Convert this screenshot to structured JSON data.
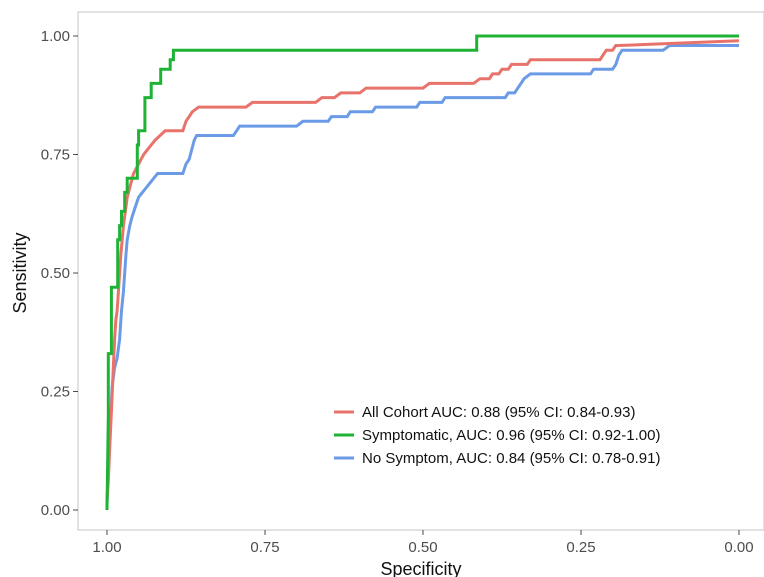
{
  "chart_data": {
    "type": "line",
    "title": "",
    "xlabel": "Specificity",
    "ylabel": "Sensitivity",
    "x_reversed": true,
    "xlim": [
      1.0,
      0.0
    ],
    "ylim": [
      0.0,
      1.0
    ],
    "x_ticks": [
      "1.00",
      "0.75",
      "0.50",
      "0.25",
      "0.00"
    ],
    "y_ticks": [
      "0.00",
      "0.25",
      "0.50",
      "0.75",
      "1.00"
    ],
    "grid": false,
    "legend_position": "bottom-right",
    "series": [
      {
        "name": "All Cohort AUC: 0.88 (95% CI: 0.84-0.93)",
        "color": "#e8736b",
        "points": [
          [
            1.0,
            0.0
          ],
          [
            1.0,
            0.02
          ],
          [
            0.998,
            0.06
          ],
          [
            0.996,
            0.12
          ],
          [
            0.994,
            0.18
          ],
          [
            0.992,
            0.24
          ],
          [
            0.99,
            0.3
          ],
          [
            0.988,
            0.36
          ],
          [
            0.986,
            0.4
          ],
          [
            0.984,
            0.42
          ],
          [
            0.982,
            0.46
          ],
          [
            0.98,
            0.5
          ],
          [
            0.978,
            0.54
          ],
          [
            0.976,
            0.57
          ],
          [
            0.974,
            0.6
          ],
          [
            0.972,
            0.62
          ],
          [
            0.97,
            0.64
          ],
          [
            0.968,
            0.66
          ],
          [
            0.966,
            0.67
          ],
          [
            0.962,
            0.69
          ],
          [
            0.958,
            0.71
          ],
          [
            0.954,
            0.72
          ],
          [
            0.95,
            0.73
          ],
          [
            0.946,
            0.74
          ],
          [
            0.942,
            0.75
          ],
          [
            0.936,
            0.76
          ],
          [
            0.93,
            0.77
          ],
          [
            0.924,
            0.78
          ],
          [
            0.916,
            0.79
          ],
          [
            0.908,
            0.8
          ],
          [
            0.88,
            0.8
          ],
          [
            0.875,
            0.82
          ],
          [
            0.87,
            0.83
          ],
          [
            0.865,
            0.84
          ],
          [
            0.855,
            0.85
          ],
          [
            0.78,
            0.85
          ],
          [
            0.77,
            0.86
          ],
          [
            0.67,
            0.86
          ],
          [
            0.66,
            0.87
          ],
          [
            0.64,
            0.87
          ],
          [
            0.63,
            0.88
          ],
          [
            0.6,
            0.88
          ],
          [
            0.59,
            0.89
          ],
          [
            0.5,
            0.89
          ],
          [
            0.49,
            0.9
          ],
          [
            0.42,
            0.9
          ],
          [
            0.41,
            0.91
          ],
          [
            0.395,
            0.91
          ],
          [
            0.39,
            0.92
          ],
          [
            0.38,
            0.92
          ],
          [
            0.375,
            0.93
          ],
          [
            0.365,
            0.93
          ],
          [
            0.36,
            0.94
          ],
          [
            0.335,
            0.94
          ],
          [
            0.33,
            0.95
          ],
          [
            0.22,
            0.95
          ],
          [
            0.215,
            0.96
          ],
          [
            0.21,
            0.97
          ],
          [
            0.2,
            0.97
          ],
          [
            0.195,
            0.98
          ],
          [
            0.19,
            0.98
          ],
          [
            0.0,
            0.99
          ]
        ]
      },
      {
        "name": "Symptomatic, AUC: 0.96 (95% CI: 0.92-1.00)",
        "color": "#1fb336",
        "points": [
          [
            1.0,
            0.0
          ],
          [
            0.998,
            0.2
          ],
          [
            0.998,
            0.33
          ],
          [
            0.993,
            0.33
          ],
          [
            0.993,
            0.47
          ],
          [
            0.983,
            0.47
          ],
          [
            0.983,
            0.57
          ],
          [
            0.98,
            0.57
          ],
          [
            0.98,
            0.6
          ],
          [
            0.977,
            0.6
          ],
          [
            0.977,
            0.63
          ],
          [
            0.972,
            0.63
          ],
          [
            0.972,
            0.67
          ],
          [
            0.968,
            0.67
          ],
          [
            0.968,
            0.7
          ],
          [
            0.952,
            0.7
          ],
          [
            0.952,
            0.77
          ],
          [
            0.95,
            0.77
          ],
          [
            0.95,
            0.8
          ],
          [
            0.94,
            0.8
          ],
          [
            0.94,
            0.87
          ],
          [
            0.93,
            0.87
          ],
          [
            0.93,
            0.9
          ],
          [
            0.915,
            0.9
          ],
          [
            0.915,
            0.93
          ],
          [
            0.9,
            0.93
          ],
          [
            0.9,
            0.95
          ],
          [
            0.895,
            0.95
          ],
          [
            0.895,
            0.97
          ],
          [
            0.415,
            0.97
          ],
          [
            0.415,
            1.0
          ],
          [
            0.0,
            1.0
          ]
        ]
      },
      {
        "name": "No Symptom, AUC: 0.84 (95% CI: 0.78-0.91)",
        "color": "#6b9be6",
        "points": [
          [
            1.0,
            0.0
          ],
          [
            1.0,
            0.02
          ],
          [
            0.998,
            0.08
          ],
          [
            0.996,
            0.14
          ],
          [
            0.994,
            0.2
          ],
          [
            0.992,
            0.26
          ],
          [
            0.988,
            0.3
          ],
          [
            0.984,
            0.32
          ],
          [
            0.98,
            0.36
          ],
          [
            0.977,
            0.42
          ],
          [
            0.974,
            0.46
          ],
          [
            0.972,
            0.5
          ],
          [
            0.97,
            0.54
          ],
          [
            0.968,
            0.57
          ],
          [
            0.964,
            0.6
          ],
          [
            0.96,
            0.62
          ],
          [
            0.955,
            0.64
          ],
          [
            0.95,
            0.66
          ],
          [
            0.944,
            0.67
          ],
          [
            0.938,
            0.68
          ],
          [
            0.932,
            0.69
          ],
          [
            0.926,
            0.7
          ],
          [
            0.92,
            0.71
          ],
          [
            0.88,
            0.71
          ],
          [
            0.875,
            0.73
          ],
          [
            0.87,
            0.74
          ],
          [
            0.866,
            0.76
          ],
          [
            0.862,
            0.78
          ],
          [
            0.858,
            0.79
          ],
          [
            0.8,
            0.79
          ],
          [
            0.795,
            0.8
          ],
          [
            0.79,
            0.81
          ],
          [
            0.7,
            0.81
          ],
          [
            0.69,
            0.82
          ],
          [
            0.65,
            0.82
          ],
          [
            0.645,
            0.83
          ],
          [
            0.62,
            0.83
          ],
          [
            0.615,
            0.84
          ],
          [
            0.58,
            0.84
          ],
          [
            0.575,
            0.85
          ],
          [
            0.51,
            0.85
          ],
          [
            0.505,
            0.86
          ],
          [
            0.47,
            0.86
          ],
          [
            0.465,
            0.87
          ],
          [
            0.37,
            0.87
          ],
          [
            0.365,
            0.88
          ],
          [
            0.355,
            0.88
          ],
          [
            0.35,
            0.89
          ],
          [
            0.345,
            0.9
          ],
          [
            0.34,
            0.91
          ],
          [
            0.33,
            0.92
          ],
          [
            0.235,
            0.92
          ],
          [
            0.23,
            0.93
          ],
          [
            0.2,
            0.93
          ],
          [
            0.195,
            0.94
          ],
          [
            0.19,
            0.96
          ],
          [
            0.185,
            0.97
          ],
          [
            0.12,
            0.97
          ],
          [
            0.11,
            0.98
          ],
          [
            0.0,
            0.98
          ]
        ]
      }
    ]
  }
}
